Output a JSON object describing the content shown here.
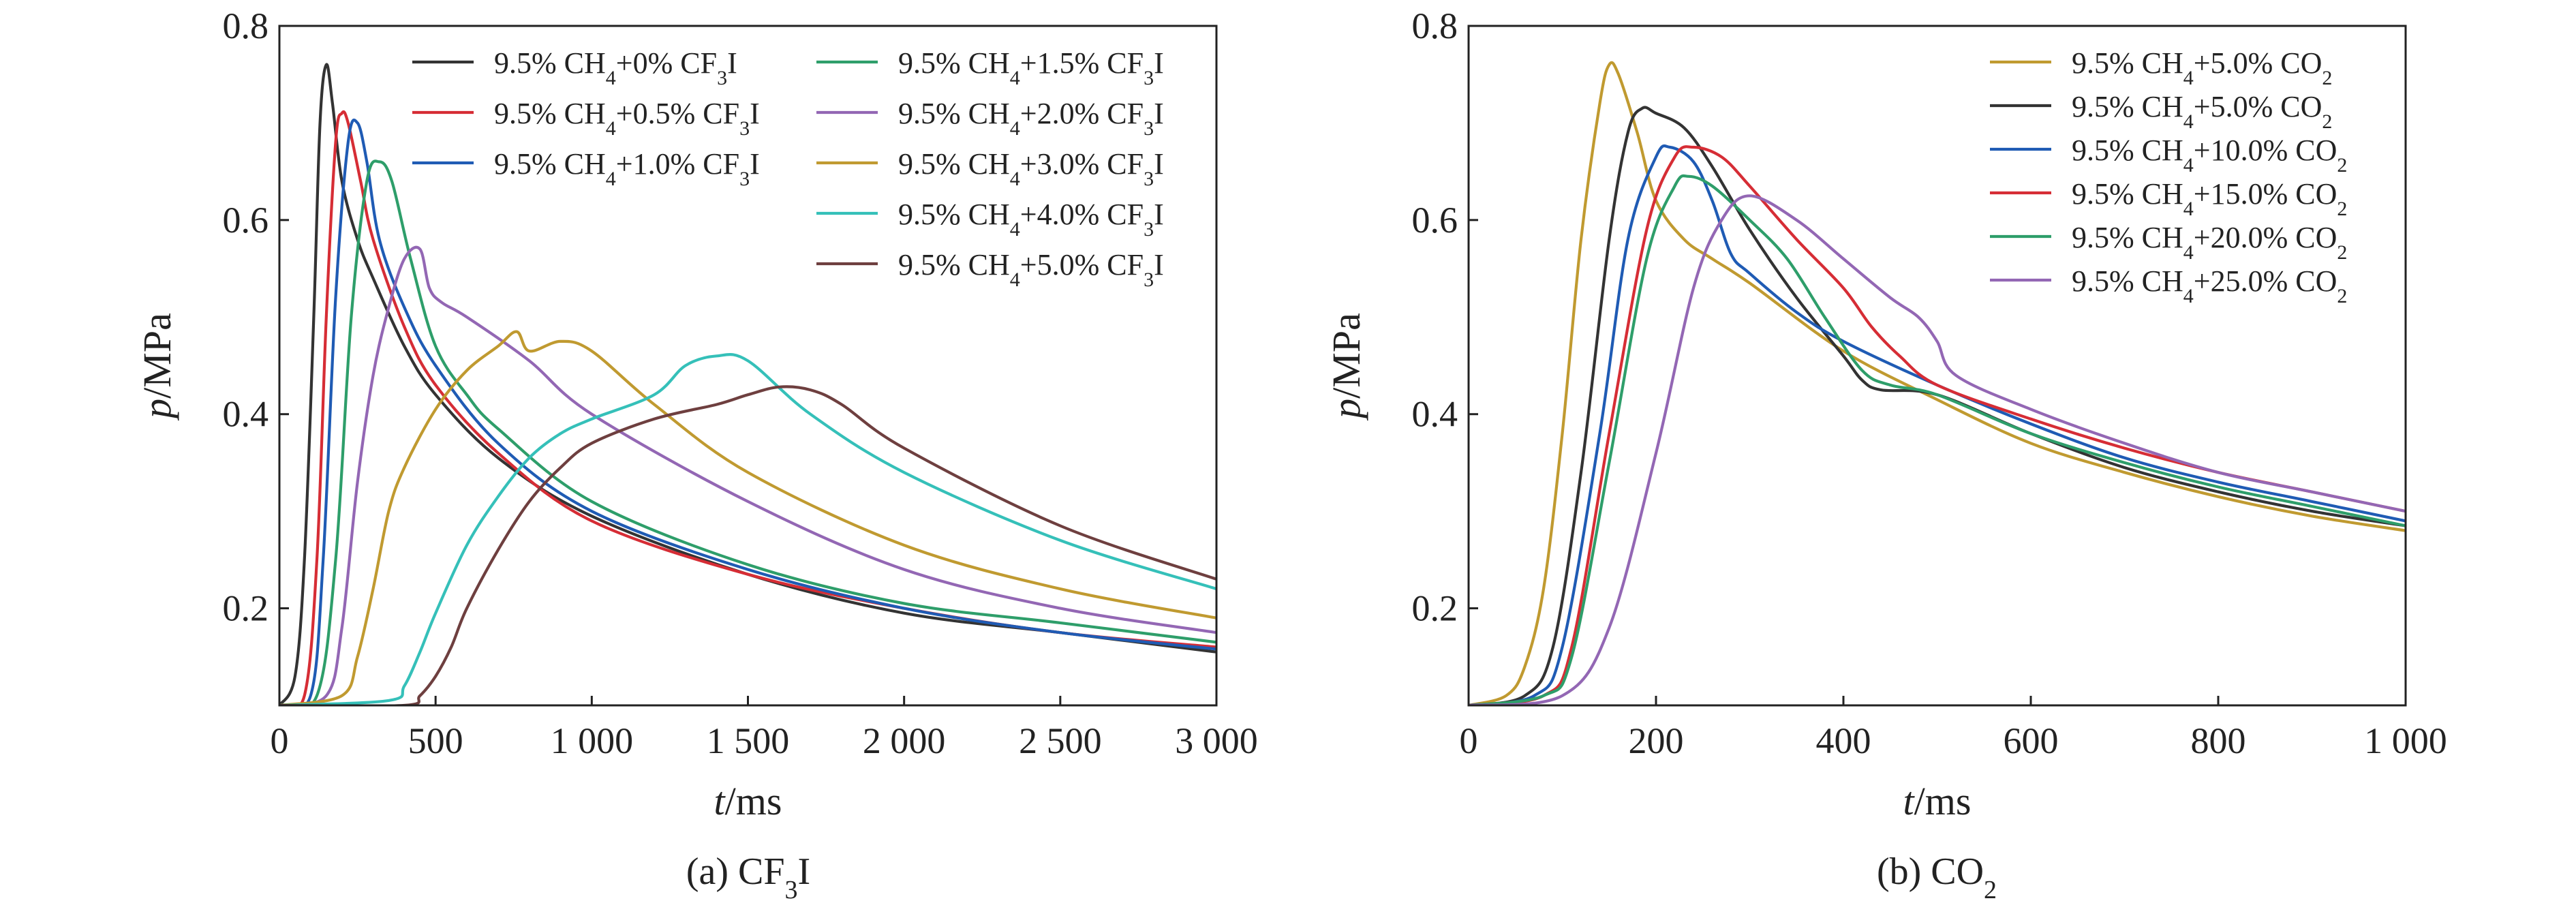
{
  "chart_data": [
    {
      "type": "line",
      "panel": "a",
      "caption": {
        "pre": "(a) CF",
        "sub": "3",
        "post": "I"
      },
      "xlabel": {
        "it": "t",
        "rest": "/ms"
      },
      "ylabel": {
        "it": "p",
        "rest": "/MPa"
      },
      "xlim": [
        0,
        3000
      ],
      "ylim": [
        0.1,
        0.8
      ],
      "xticks": [
        0,
        500,
        1000,
        1500,
        2000,
        2500,
        3000
      ],
      "xtick_labels": [
        "0",
        "500",
        "1 000",
        "1 500",
        "2 000",
        "2 500",
        "3 000"
      ],
      "yticks": [
        0.2,
        0.4,
        0.6,
        0.8
      ],
      "ytick_labels": [
        "0.2",
        "0.4",
        "0.6",
        "0.8"
      ],
      "grid": false,
      "legend_position": "top-right, two columns",
      "series": [
        {
          "name": "9.5% CH4+0% CF3I",
          "label": {
            "pre": "9.5% CH",
            "sub1": "4",
            "mid": "+0% CF",
            "sub2": "3",
            "post": "I"
          },
          "color": "#333333",
          "x": [
            0,
            50,
            80,
            110,
            130,
            150,
            170,
            200,
            250,
            300,
            400,
            500,
            700,
            1000,
            1500,
            2000,
            2500,
            3000
          ],
          "y": [
            0.1,
            0.13,
            0.25,
            0.5,
            0.7,
            0.76,
            0.72,
            0.64,
            0.58,
            0.54,
            0.47,
            0.42,
            0.355,
            0.295,
            0.235,
            0.195,
            0.175,
            0.155
          ]
        },
        {
          "name": "9.5% CH4+0.5% CF3I",
          "label": {
            "pre": "9.5% CH",
            "sub1": "4",
            "mid": "+0.5% CF",
            "sub2": "3",
            "post": "I"
          },
          "color": "#d62d35",
          "x": [
            0,
            80,
            120,
            150,
            180,
            200,
            220,
            260,
            300,
            400,
            500,
            700,
            1000,
            1500,
            2000,
            2500,
            3000
          ],
          "y": [
            0.1,
            0.11,
            0.25,
            0.5,
            0.68,
            0.71,
            0.7,
            0.64,
            0.58,
            0.49,
            0.43,
            0.36,
            0.29,
            0.235,
            0.2,
            0.175,
            0.16
          ]
        },
        {
          "name": "9.5% CH4+1.0% CF3I",
          "label": {
            "pre": "9.5% CH",
            "sub1": "4",
            "mid": "+1.0% CF",
            "sub2": "3",
            "post": "I"
          },
          "color": "#1f5bb4",
          "x": [
            0,
            100,
            140,
            180,
            220,
            250,
            280,
            320,
            400,
            500,
            700,
            1000,
            1500,
            2000,
            2500,
            3000
          ],
          "y": [
            0.1,
            0.11,
            0.25,
            0.52,
            0.68,
            0.7,
            0.66,
            0.58,
            0.51,
            0.45,
            0.37,
            0.3,
            0.24,
            0.2,
            0.175,
            0.158
          ]
        },
        {
          "name": "9.5% CH4+1.5% CF3I",
          "label": {
            "pre": "9.5% CH",
            "sub1": "4",
            "mid": "+1.5% CF",
            "sub2": "3",
            "post": "I"
          },
          "color": "#2e9e6a",
          "x": [
            0,
            120,
            180,
            230,
            280,
            320,
            360,
            420,
            500,
            600,
            700,
            1000,
            1500,
            2000,
            2500,
            3000
          ],
          "y": [
            0.1,
            0.11,
            0.25,
            0.5,
            0.64,
            0.66,
            0.64,
            0.56,
            0.47,
            0.42,
            0.385,
            0.31,
            0.245,
            0.205,
            0.185,
            0.165
          ]
        },
        {
          "name": "9.5% CH4+2.0% CF3I",
          "label": {
            "pre": "9.5% CH",
            "sub1": "4",
            "mid": "+2.0% CF",
            "sub2": "3",
            "post": "I"
          },
          "color": "#9367b4",
          "x": [
            0,
            150,
            200,
            250,
            300,
            350,
            400,
            450,
            480,
            520,
            600,
            800,
            1000,
            1500,
            2000,
            2500,
            3000
          ],
          "y": [
            0.1,
            0.11,
            0.18,
            0.33,
            0.44,
            0.51,
            0.56,
            0.57,
            0.53,
            0.515,
            0.5,
            0.455,
            0.4,
            0.31,
            0.24,
            0.2,
            0.175
          ]
        },
        {
          "name": "9.5% CH4+3.0% CF3I",
          "label": {
            "pre": "9.5% CH",
            "sub1": "4",
            "mid": "+3.0% CF",
            "sub2": "3",
            "post": "I"
          },
          "color": "#c09a30",
          "x": [
            0,
            200,
            250,
            300,
            350,
            400,
            500,
            600,
            700,
            760,
            800,
            900,
            1000,
            1200,
            1500,
            2000,
            2500,
            3000
          ],
          "y": [
            0.1,
            0.11,
            0.15,
            0.22,
            0.3,
            0.345,
            0.405,
            0.445,
            0.47,
            0.485,
            0.465,
            0.475,
            0.465,
            0.41,
            0.34,
            0.265,
            0.22,
            0.19
          ]
        },
        {
          "name": "9.5% CH4+4.0% CF3I",
          "label": {
            "pre": "9.5% CH",
            "sub1": "4",
            "mid": "+4.0% CF",
            "sub2": "3",
            "post": "I"
          },
          "color": "#35c0b9",
          "x": [
            0,
            350,
            400,
            450,
            500,
            600,
            700,
            800,
            900,
            1000,
            1200,
            1300,
            1400,
            1500,
            1700,
            2000,
            2500,
            3000
          ],
          "y": [
            0.1,
            0.105,
            0.12,
            0.155,
            0.195,
            0.265,
            0.315,
            0.355,
            0.38,
            0.395,
            0.42,
            0.45,
            0.46,
            0.455,
            0.4,
            0.34,
            0.27,
            0.22
          ]
        },
        {
          "name": "9.5% CH4+5.0% CF3I",
          "label": {
            "pre": "9.5% CH",
            "sub1": "4",
            "mid": "+5.0% CF",
            "sub2": "3",
            "post": "I"
          },
          "color": "#6e3f3f",
          "x": [
            0,
            400,
            450,
            500,
            550,
            600,
            700,
            800,
            900,
            1000,
            1200,
            1400,
            1500,
            1600,
            1700,
            1800,
            2000,
            2500,
            3000
          ],
          "y": [
            0.1,
            0.1,
            0.11,
            0.13,
            0.16,
            0.2,
            0.26,
            0.31,
            0.345,
            0.37,
            0.395,
            0.41,
            0.42,
            0.428,
            0.425,
            0.41,
            0.365,
            0.285,
            0.23
          ]
        }
      ]
    },
    {
      "type": "line",
      "panel": "b",
      "caption": {
        "pre": "(b) CO",
        "sub": "2",
        "post": ""
      },
      "xlabel": {
        "it": "t",
        "rest": "/ms"
      },
      "ylabel": {
        "it": "p",
        "rest": "/MPa"
      },
      "xlim": [
        0,
        1000
      ],
      "ylim": [
        0.1,
        0.8
      ],
      "xticks": [
        0,
        200,
        400,
        600,
        800,
        1000
      ],
      "xtick_labels": [
        "0",
        "200",
        "400",
        "600",
        "800",
        "1 000"
      ],
      "yticks": [
        0.2,
        0.4,
        0.6,
        0.8
      ],
      "ytick_labels": [
        "0.2",
        "0.4",
        "0.6",
        "0.8"
      ],
      "grid": false,
      "legend_position": "top-right",
      "series": [
        {
          "name": "9.5% CH4+5.0% CO2",
          "label": {
            "pre": "9.5% CH",
            "sub1": "4",
            "mid": "+5.0% CO",
            "sub2": "2",
            "post": ""
          },
          "color": "#c09a30",
          "x": [
            0,
            40,
            60,
            80,
            100,
            120,
            140,
            150,
            160,
            180,
            200,
            230,
            260,
            300,
            400,
            500,
            600,
            700,
            800,
            900,
            1000
          ],
          "y": [
            0.1,
            0.11,
            0.14,
            0.22,
            0.38,
            0.58,
            0.72,
            0.76,
            0.75,
            0.69,
            0.62,
            0.58,
            0.56,
            0.535,
            0.465,
            0.415,
            0.37,
            0.34,
            0.315,
            0.295,
            0.28
          ]
        },
        {
          "name": "9.5% CH4+5.0% CO2",
          "label": {
            "pre": "9.5% CH",
            "sub1": "4",
            "mid": "+5.0% CO",
            "sub2": "2",
            "post": ""
          },
          "color": "#333333",
          "x": [
            0,
            60,
            90,
            120,
            150,
            170,
            185,
            200,
            230,
            260,
            300,
            350,
            400,
            420,
            440,
            500,
            600,
            700,
            800,
            900,
            1000
          ],
          "y": [
            0.1,
            0.11,
            0.16,
            0.34,
            0.58,
            0.69,
            0.715,
            0.71,
            0.695,
            0.655,
            0.59,
            0.52,
            0.46,
            0.435,
            0.425,
            0.42,
            0.38,
            0.345,
            0.32,
            0.3,
            0.285
          ]
        },
        {
          "name": "9.5% CH4+10.0% CO2",
          "label": {
            "pre": "9.5% CH",
            "sub1": "4",
            "mid": "+10.0% CO",
            "sub2": "2",
            "post": ""
          },
          "color": "#1f5bb4",
          "x": [
            0,
            70,
            100,
            140,
            170,
            200,
            215,
            240,
            260,
            280,
            300,
            350,
            400,
            500,
            600,
            700,
            800,
            900,
            1000
          ],
          "y": [
            0.1,
            0.11,
            0.16,
            0.38,
            0.58,
            0.665,
            0.675,
            0.66,
            0.62,
            0.565,
            0.545,
            0.505,
            0.475,
            0.43,
            0.39,
            0.355,
            0.33,
            0.31,
            0.29
          ]
        },
        {
          "name": "9.5% CH4+15.0% CO2",
          "label": {
            "pre": "9.5% CH",
            "sub1": "4",
            "mid": "+15.0% CO",
            "sub2": "2",
            "post": ""
          },
          "color": "#d62d35",
          "x": [
            0,
            80,
            110,
            150,
            190,
            220,
            240,
            270,
            300,
            350,
            400,
            430,
            460,
            500,
            600,
            700,
            800,
            900,
            1000
          ],
          "y": [
            0.1,
            0.11,
            0.16,
            0.38,
            0.59,
            0.665,
            0.675,
            0.665,
            0.635,
            0.58,
            0.53,
            0.49,
            0.46,
            0.43,
            0.395,
            0.365,
            0.34,
            0.32,
            0.3
          ]
        },
        {
          "name": "9.5% CH4+20.0% CO2",
          "label": {
            "pre": "9.5% CH",
            "sub1": "4",
            "mid": "+20.0% CO",
            "sub2": "2",
            "post": ""
          },
          "color": "#2e9e6a",
          "x": [
            0,
            80,
            110,
            150,
            190,
            220,
            235,
            260,
            300,
            340,
            380,
            420,
            450,
            500,
            600,
            700,
            800,
            900,
            1000
          ],
          "y": [
            0.1,
            0.11,
            0.15,
            0.35,
            0.56,
            0.635,
            0.645,
            0.635,
            0.6,
            0.56,
            0.5,
            0.445,
            0.43,
            0.42,
            0.38,
            0.35,
            0.325,
            0.305,
            0.285
          ]
        },
        {
          "name": "9.5% CH4+25.0% CO2",
          "label": {
            "pre": "9.5% CH",
            "sub1": "4",
            "mid": "+25.0% CO",
            "sub2": "2",
            "post": ""
          },
          "color": "#9367b4",
          "x": [
            0,
            100,
            150,
            200,
            240,
            270,
            300,
            350,
            400,
            450,
            480,
            500,
            520,
            600,
            700,
            800,
            900,
            1000
          ],
          "y": [
            0.1,
            0.11,
            0.18,
            0.36,
            0.53,
            0.6,
            0.625,
            0.6,
            0.56,
            0.52,
            0.5,
            0.475,
            0.44,
            0.405,
            0.37,
            0.34,
            0.32,
            0.3
          ]
        }
      ]
    }
  ]
}
